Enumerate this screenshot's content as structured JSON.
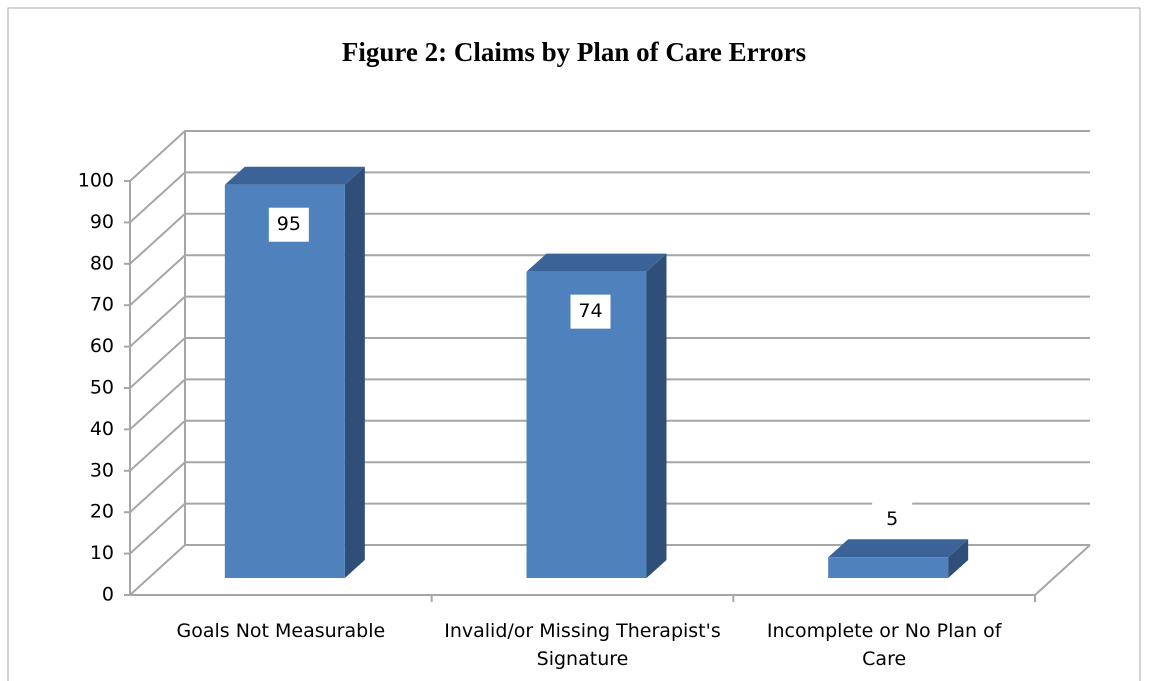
{
  "chart_data": {
    "type": "bar3d",
    "title": "Figure 2:  Claims by Plan of Care Errors",
    "categories": [
      "Goals Not Measurable",
      "Invalid/or Missing Therapist's Signature",
      "Incomplete or No Plan of Care"
    ],
    "values": [
      95,
      74,
      5
    ],
    "color": "#4f81bd",
    "ylim": [
      0,
      100
    ],
    "yticks": [
      0,
      10,
      20,
      30,
      40,
      50,
      60,
      70,
      80,
      90,
      100
    ],
    "grid": true
  }
}
